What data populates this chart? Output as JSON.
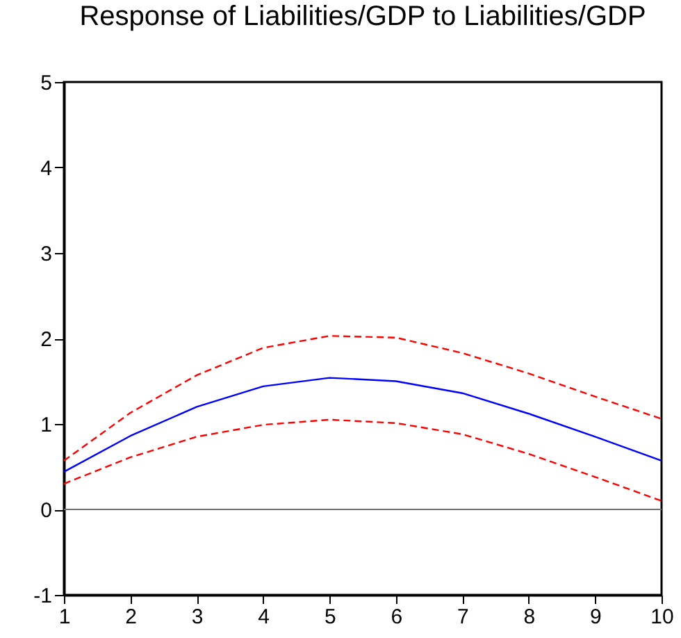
{
  "chart_data": {
    "type": "line",
    "title": "Response of Liabilities/GDP to Liabilities/GDP",
    "x": [
      1,
      2,
      3,
      4,
      5,
      6,
      7,
      8,
      9,
      10
    ],
    "series": [
      {
        "color": "#0000ff",
        "line_style": "solid",
        "values": [
          0.44,
          0.86,
          1.2,
          1.44,
          1.54,
          1.5,
          1.36,
          1.12,
          0.85,
          0.57
        ]
      },
      {
        "color": "#ff0000",
        "line_style": "dashed",
        "values": [
          0.57,
          1.13,
          1.57,
          1.89,
          2.03,
          2.01,
          1.83,
          1.59,
          1.32,
          1.06
        ]
      },
      {
        "color": "#ff0000",
        "line_style": "dashed",
        "values": [
          0.3,
          0.61,
          0.85,
          0.99,
          1.05,
          1.01,
          0.88,
          0.65,
          0.38,
          0.1
        ]
      }
    ],
    "xlim": [
      1,
      10
    ],
    "xticks": [
      1,
      2,
      3,
      4,
      5,
      6,
      7,
      8,
      9,
      10
    ],
    "ylim": [
      -1,
      5
    ],
    "yticks": [
      -1,
      0,
      1,
      2,
      3,
      4,
      5
    ],
    "ref_lines": [
      {
        "axis": "y",
        "value": 0,
        "color": "#707070"
      }
    ],
    "grid": false
  }
}
